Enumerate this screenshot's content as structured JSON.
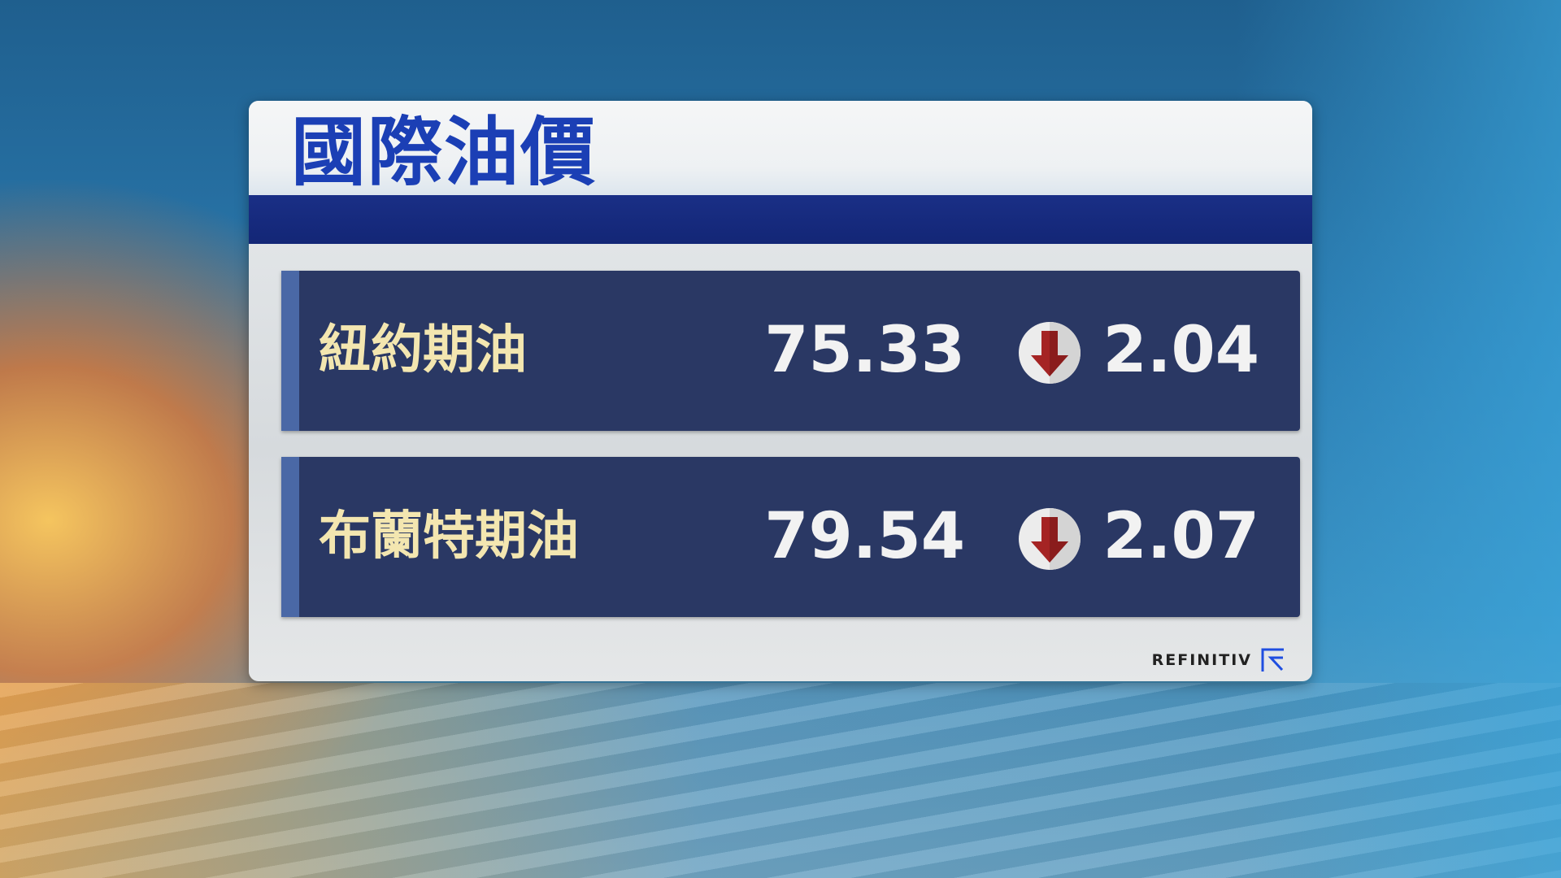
{
  "title": "國際油價",
  "rows": [
    {
      "name": "紐約期油",
      "price": "75.33",
      "direction": "down",
      "change": "2.04",
      "icon": "down-arrow-icon"
    },
    {
      "name": "布蘭特期油",
      "price": "79.54",
      "direction": "down",
      "change": "2.07",
      "icon": "down-arrow-icon"
    }
  ],
  "source": "REFINITIV",
  "colors": {
    "title": "#1b3fb5",
    "band": "#1a2f86",
    "row": "#2a3864",
    "name": "#f3e6b0",
    "arrow": "#a02020"
  }
}
